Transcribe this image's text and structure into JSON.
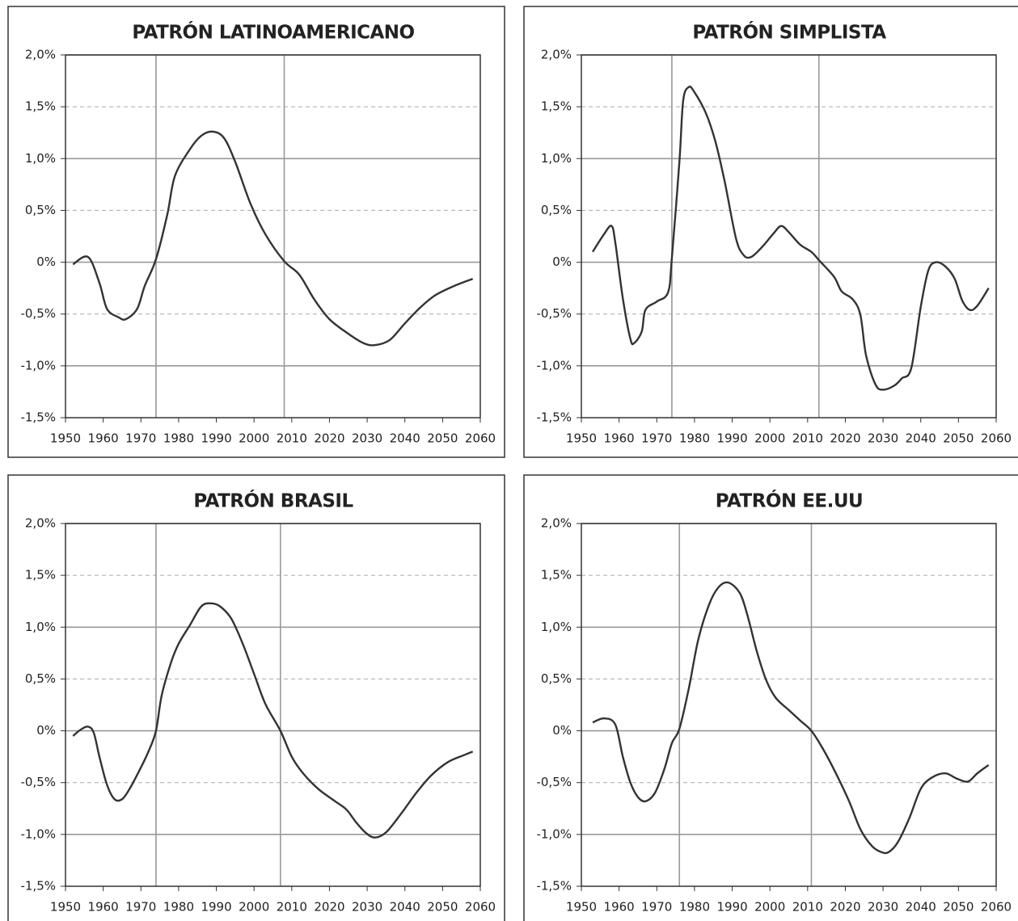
{
  "chart_data": [
    {
      "type": "line",
      "title": "PATRÓN LATINOAMERICANO",
      "x": [
        1952,
        1956,
        1959,
        1961,
        1964,
        1966,
        1969,
        1971,
        1974,
        1977,
        1979,
        1983,
        1986,
        1989,
        1992,
        1995,
        1999,
        2003,
        2008,
        2012,
        2016,
        2020,
        2025,
        2029,
        2032,
        2036,
        2040,
        2044,
        2048,
        2053,
        2058
      ],
      "series": [
        {
          "color": "#333333",
          "values": [
            -0.02,
            0.05,
            -0.2,
            -0.45,
            -0.53,
            -0.55,
            -0.45,
            -0.23,
            0.03,
            0.46,
            0.83,
            1.09,
            1.22,
            1.26,
            1.2,
            0.97,
            0.57,
            0.27,
            0.01,
            -0.12,
            -0.36,
            -0.55,
            -0.69,
            -0.78,
            -0.8,
            -0.75,
            -0.59,
            -0.44,
            -0.32,
            -0.23,
            -0.16
          ]
        }
      ],
      "vlines": [
        1974,
        2008
      ],
      "xlim": [
        1950,
        2060
      ],
      "xticks": [
        1950,
        1960,
        1970,
        1980,
        1990,
        2000,
        2010,
        2020,
        2030,
        2040,
        2050,
        2060
      ],
      "ylim": [
        -1.5,
        2.0
      ],
      "yticks": [
        {
          "value": -1.5,
          "label": "-1,5%"
        },
        {
          "value": -1.0,
          "label": "-1,0%"
        },
        {
          "value": -0.5,
          "label": "-0,5%"
        },
        {
          "value": 0,
          "label": "0%"
        },
        {
          "value": 0.5,
          "label": "0,5%"
        },
        {
          "value": 1.0,
          "label": "1,0%"
        },
        {
          "value": 1.5,
          "label": "1,5%"
        },
        {
          "value": 2.0,
          "label": "2,0%"
        }
      ],
      "grid": true
    },
    {
      "type": "line",
      "title": "PATRÓN SIMPLISTA",
      "x": [
        1953,
        1956,
        1958,
        1959,
        1961,
        1963,
        1964,
        1966,
        1967,
        1970,
        1973,
        1974,
        1976,
        1977,
        1978.5,
        1980,
        1983,
        1985.5,
        1988,
        1991,
        1993,
        1995,
        1998,
        2001,
        2003,
        2005,
        2008,
        2011,
        2013,
        2017,
        2019,
        2022,
        2024,
        2025.5,
        2028,
        2030,
        2033,
        2035,
        2037.5,
        2040,
        2042,
        2044,
        2046.5,
        2049,
        2051,
        2053,
        2055,
        2058
      ],
      "series": [
        {
          "color": "#333333",
          "values": [
            0.1,
            0.27,
            0.35,
            0.19,
            -0.35,
            -0.74,
            -0.78,
            -0.67,
            -0.46,
            -0.38,
            -0.29,
            0.04,
            0.97,
            1.56,
            1.69,
            1.64,
            1.44,
            1.17,
            0.78,
            0.23,
            0.07,
            0.05,
            0.15,
            0.28,
            0.35,
            0.29,
            0.17,
            0.1,
            0.02,
            -0.14,
            -0.28,
            -0.36,
            -0.51,
            -0.9,
            -1.18,
            -1.23,
            -1.19,
            -1.12,
            -1.02,
            -0.43,
            -0.08,
            0.0,
            -0.04,
            -0.16,
            -0.37,
            -0.46,
            -0.42,
            -0.25
          ]
        }
      ],
      "vlines": [
        1974,
        2013
      ],
      "xlim": [
        1950,
        2060
      ],
      "xticks": [
        1950,
        1960,
        1970,
        1980,
        1990,
        2000,
        2010,
        2020,
        2030,
        2040,
        2050,
        2060
      ],
      "ylim": [
        -1.5,
        2.0
      ],
      "yticks": [
        {
          "value": -1.5,
          "label": "-1,5%"
        },
        {
          "value": -1.0,
          "label": "-1,0%"
        },
        {
          "value": -0.5,
          "label": "-0,5%"
        },
        {
          "value": 0,
          "label": "0%"
        },
        {
          "value": 0.5,
          "label": "0,5%"
        },
        {
          "value": 1.0,
          "label": "1,0%"
        },
        {
          "value": 1.5,
          "label": "1,5%"
        },
        {
          "value": 2.0,
          "label": "2,0%"
        }
      ],
      "grid": true
    },
    {
      "type": "line",
      "title": "PATRÓN BRASIL",
      "x": [
        1952,
        1954,
        1956,
        1957.5,
        1959,
        1961,
        1963,
        1965,
        1967,
        1969.5,
        1972,
        1974,
        1975.5,
        1978,
        1980,
        1983,
        1986,
        1988.5,
        1991,
        1994,
        1997,
        2000,
        2003,
        2007,
        2010,
        2013,
        2017,
        2021.5,
        2024.5,
        2027,
        2029.5,
        2032,
        2035,
        2039,
        2043,
        2047,
        2051.5,
        2056,
        2058
      ],
      "series": [
        {
          "color": "#333333",
          "values": [
            -0.05,
            0.01,
            0.04,
            -0.02,
            -0.25,
            -0.52,
            -0.66,
            -0.66,
            -0.56,
            -0.39,
            -0.2,
            0.0,
            0.34,
            0.66,
            0.84,
            1.02,
            1.2,
            1.23,
            1.2,
            1.08,
            0.84,
            0.55,
            0.26,
            0.0,
            -0.25,
            -0.41,
            -0.56,
            -0.68,
            -0.76,
            -0.88,
            -0.98,
            -1.03,
            -0.98,
            -0.8,
            -0.6,
            -0.43,
            -0.3,
            -0.23,
            -0.2
          ]
        }
      ],
      "vlines": [
        1974,
        2007
      ],
      "xlim": [
        1950,
        2060
      ],
      "xticks": [
        1950,
        1960,
        1970,
        1980,
        1990,
        2000,
        2010,
        2020,
        2030,
        2040,
        2050,
        2060
      ],
      "ylim": [
        -1.5,
        2.0
      ],
      "yticks": [
        {
          "value": -1.5,
          "label": "-1,5%"
        },
        {
          "value": -1.0,
          "label": "-1,0%"
        },
        {
          "value": -0.5,
          "label": "-0,5%"
        },
        {
          "value": 0,
          "label": "0%"
        },
        {
          "value": 0.5,
          "label": "0,5%"
        },
        {
          "value": 1.0,
          "label": "1,0%"
        },
        {
          "value": 1.5,
          "label": "1,5%"
        },
        {
          "value": 2.0,
          "label": "2,0%"
        }
      ],
      "grid": true
    },
    {
      "type": "line",
      "title": "PATRÓN EE.UU",
      "x": [
        1953,
        1956,
        1959,
        1961,
        1963,
        1965,
        1967,
        1969.5,
        1972,
        1974,
        1976,
        1978.5,
        1981,
        1984,
        1986.5,
        1989,
        1992,
        1994,
        1996.5,
        1999,
        2001.5,
        2005,
        2008,
        2011,
        2014,
        2017.5,
        2021,
        2024,
        2027,
        2029.5,
        2031.5,
        2034,
        2037,
        2040,
        2043,
        2046.5,
        2049.5,
        2052.5,
        2055,
        2058
      ],
      "series": [
        {
          "color": "#333333",
          "values": [
            0.08,
            0.12,
            0.06,
            -0.25,
            -0.5,
            -0.64,
            -0.68,
            -0.6,
            -0.37,
            -0.12,
            0.02,
            0.41,
            0.88,
            1.23,
            1.39,
            1.43,
            1.33,
            1.12,
            0.77,
            0.49,
            0.32,
            0.2,
            0.1,
            0.0,
            -0.17,
            -0.41,
            -0.68,
            -0.95,
            -1.11,
            -1.17,
            -1.17,
            -1.07,
            -0.84,
            -0.56,
            -0.45,
            -0.41,
            -0.46,
            -0.49,
            -0.41,
            -0.33
          ]
        }
      ],
      "vlines": [
        1976,
        2011
      ],
      "xlim": [
        1950,
        2060
      ],
      "xticks": [
        1950,
        1960,
        1970,
        1980,
        1990,
        2000,
        2010,
        2020,
        2030,
        2040,
        2050,
        2060
      ],
      "ylim": [
        -1.5,
        2.0
      ],
      "yticks": [
        {
          "value": -1.5,
          "label": "-1,5%"
        },
        {
          "value": -1.0,
          "label": "-1,0%"
        },
        {
          "value": -0.5,
          "label": "-0,5%"
        },
        {
          "value": 0,
          "label": "0%"
        },
        {
          "value": 0.5,
          "label": "0,5%"
        },
        {
          "value": 1.0,
          "label": "1,0%"
        },
        {
          "value": 1.5,
          "label": "1,5%"
        },
        {
          "value": 2.0,
          "label": "2,0%"
        }
      ],
      "grid": true
    }
  ]
}
